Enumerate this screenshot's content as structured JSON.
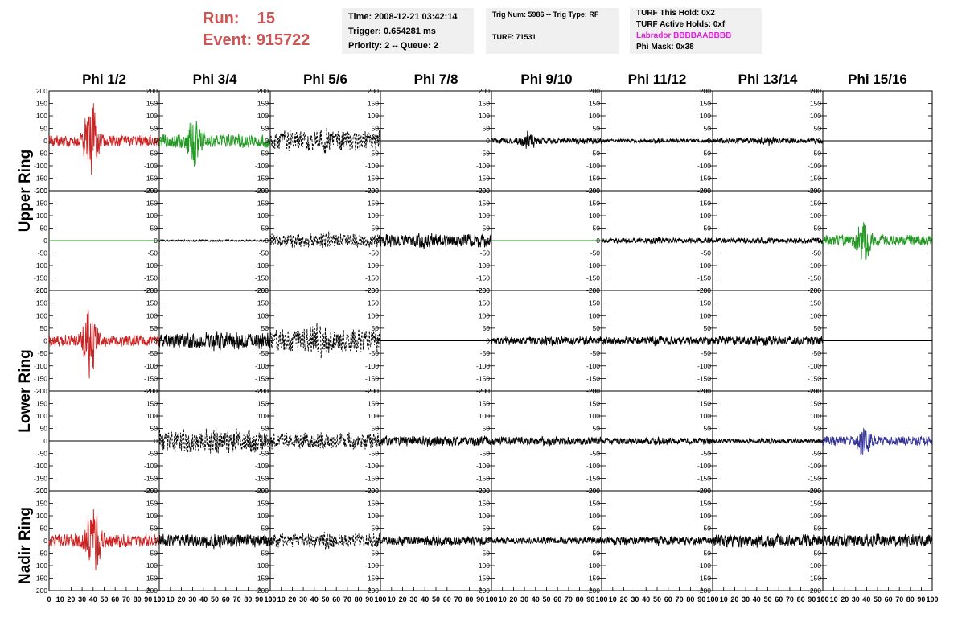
{
  "header": {
    "run_label": "Run:",
    "run_value": "15",
    "event_label": "Event:",
    "event_value": "915722",
    "header_color": "#cc5555"
  },
  "info_time": {
    "time": "Time: 2008-12-21 03:42:14",
    "trigger": "Trigger: 0.654281 ms",
    "priority": "Priority: 2 -- Queue: 2"
  },
  "info_trig": {
    "trig": "Trig Num: 5986 -- Trig Type: RF",
    "turf": "TURF: 71531"
  },
  "info_turf": {
    "this_hold": "TURF This Hold: 0x2",
    "active_holds": "TURF Active Holds: 0xf",
    "labrador": "Labrador BBBBAABBBB",
    "phi_mask": "Phi Mask: 0x38",
    "labrador_color": "#e020e0"
  },
  "ring_labels": {
    "upper": "Upper Ring",
    "lower": "Lower Ring",
    "nadir": "Nadir Ring"
  },
  "chart_data": {
    "type": "line",
    "columns": [
      "Phi 1/2",
      "Phi 3/4",
      "Phi 5/6",
      "Phi 7/8",
      "Phi 9/10",
      "Phi 11/12",
      "Phi 13/14",
      "Phi 15/16"
    ],
    "rows": [
      "Upper Ring",
      "Upper Ring",
      "Lower Ring",
      "Lower Ring",
      "Nadir Ring"
    ],
    "y_ticks": [
      "200",
      "150",
      "100",
      "50",
      "0",
      "-50",
      "-100",
      "-150",
      "-200"
    ],
    "ylim": [
      -200,
      200
    ],
    "x_ticks": [
      "0",
      "10",
      "20",
      "30",
      "40",
      "50",
      "60",
      "70",
      "80",
      "90",
      "100"
    ],
    "xlim": [
      0,
      100
    ],
    "panels": [
      [
        {
          "color": "#cc2222",
          "style": "solid",
          "amp": 25,
          "burst": 160,
          "burst_center": 38
        },
        {
          "color": "#229922",
          "style": "solid",
          "amp": 30,
          "burst": 80,
          "burst_center": 32
        },
        {
          "color": "#000000",
          "style": "dashed",
          "amp": 45,
          "burst": 10,
          "burst_center": 50
        },
        {
          "color": "#000000",
          "style": "flat",
          "amp": 0,
          "burst": 0,
          "burst_center": 50
        },
        {
          "color": "#000000",
          "style": "solid",
          "amp": 14,
          "burst": 30,
          "burst_center": 34
        },
        {
          "color": "#000000",
          "style": "solid",
          "amp": 8,
          "burst": 5,
          "burst_center": 50
        },
        {
          "color": "#000000",
          "style": "solid",
          "amp": 12,
          "burst": 10,
          "burst_center": 50
        },
        {
          "color": "#000000",
          "style": "flat",
          "amp": 0,
          "burst": 0,
          "burst_center": 50
        }
      ],
      [
        {
          "color": "#229922",
          "style": "flat",
          "amp": 0,
          "burst": 0,
          "burst_center": 50
        },
        {
          "color": "#000000",
          "style": "solid",
          "amp": 4,
          "burst": 0,
          "burst_center": 50
        },
        {
          "color": "#000000",
          "style": "dashed",
          "amp": 30,
          "burst": 10,
          "burst_center": 50
        },
        {
          "color": "#000000",
          "style": "solid",
          "amp": 28,
          "burst": 15,
          "burst_center": 40
        },
        {
          "color": "#229922",
          "style": "flat",
          "amp": 0,
          "burst": 0,
          "burst_center": 50
        },
        {
          "color": "#000000",
          "style": "solid",
          "amp": 12,
          "burst": 5,
          "burst_center": 50
        },
        {
          "color": "#000000",
          "style": "solid",
          "amp": 12,
          "burst": 5,
          "burst_center": 50
        },
        {
          "color": "#229922",
          "style": "solid",
          "amp": 25,
          "burst": 80,
          "burst_center": 38
        }
      ],
      [
        {
          "color": "#cc2222",
          "style": "solid",
          "amp": 25,
          "burst": 140,
          "burst_center": 37
        },
        {
          "color": "#000000",
          "style": "solid",
          "amp": 35,
          "burst": 10,
          "burst_center": 50
        },
        {
          "color": "#000000",
          "style": "dashed",
          "amp": 50,
          "burst": 30,
          "burst_center": 45
        },
        {
          "color": "#000000",
          "style": "flat",
          "amp": 0,
          "burst": 0,
          "burst_center": 50
        },
        {
          "color": "#000000",
          "style": "solid",
          "amp": 18,
          "burst": 5,
          "burst_center": 50
        },
        {
          "color": "#000000",
          "style": "solid",
          "amp": 18,
          "burst": 5,
          "burst_center": 50
        },
        {
          "color": "#000000",
          "style": "solid",
          "amp": 20,
          "burst": 5,
          "burst_center": 50
        },
        {
          "color": "#000000",
          "style": "flat",
          "amp": 0,
          "burst": 0,
          "burst_center": 50
        }
      ],
      [
        {
          "color": "#000000",
          "style": "flat",
          "amp": 0,
          "burst": 0,
          "burst_center": 50
        },
        {
          "color": "#000000",
          "style": "dashed",
          "amp": 50,
          "burst": 10,
          "burst_center": 50
        },
        {
          "color": "#000000",
          "style": "dashed",
          "amp": 35,
          "burst": 10,
          "burst_center": 50
        },
        {
          "color": "#000000",
          "style": "solid",
          "amp": 22,
          "burst": 5,
          "burst_center": 50
        },
        {
          "color": "#000000",
          "style": "solid",
          "amp": 18,
          "burst": 5,
          "burst_center": 50
        },
        {
          "color": "#000000",
          "style": "solid",
          "amp": 15,
          "burst": 5,
          "burst_center": 50
        },
        {
          "color": "#000000",
          "style": "solid",
          "amp": 10,
          "burst": 5,
          "burst_center": 50
        },
        {
          "color": "#333399",
          "style": "solid",
          "amp": 20,
          "burst": 55,
          "burst_center": 38
        }
      ],
      [
        {
          "color": "#cc2222",
          "style": "solid",
          "amp": 28,
          "burst": 140,
          "burst_center": 40
        },
        {
          "color": "#000000",
          "style": "solid",
          "amp": 28,
          "burst": 10,
          "burst_center": 50
        },
        {
          "color": "#000000",
          "style": "dashed",
          "amp": 30,
          "burst": 10,
          "burst_center": 50
        },
        {
          "color": "#000000",
          "style": "solid",
          "amp": 20,
          "burst": 5,
          "burst_center": 50
        },
        {
          "color": "#000000",
          "style": "solid",
          "amp": 14,
          "burst": 5,
          "burst_center": 50
        },
        {
          "color": "#000000",
          "style": "solid",
          "amp": 18,
          "burst": 5,
          "burst_center": 50
        },
        {
          "color": "#000000",
          "style": "solid",
          "amp": 28,
          "burst": 5,
          "burst_center": 50
        },
        {
          "color": "#000000",
          "style": "solid",
          "amp": 28,
          "burst": 5,
          "burst_center": 50
        }
      ]
    ]
  }
}
